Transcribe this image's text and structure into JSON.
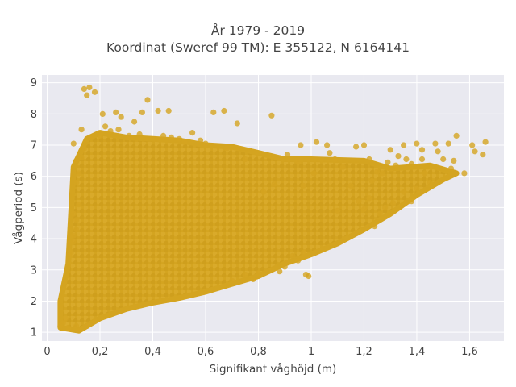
{
  "chart_data": {
    "type": "scatter",
    "title": "År 1979 - 2019",
    "subtitle": "Koordinat (Sweref 99 TM): E 355122, N 6164141",
    "xlabel": "Signifikant våghöjd (m)",
    "ylabel": "Vågperiod (s)",
    "xlim": [
      -0.02,
      1.73
    ],
    "ylim": [
      0.72,
      9.25
    ],
    "xticks": [
      "0",
      "0,2",
      "0,4",
      "0,6",
      "0,8",
      "1",
      "1,2",
      "1,4",
      "1,6"
    ],
    "xtick_values": [
      0,
      0.2,
      0.4,
      0.6,
      0.8,
      1.0,
      1.2,
      1.4,
      1.6
    ],
    "yticks": [
      "1",
      "2",
      "3",
      "4",
      "5",
      "6",
      "7",
      "8",
      "9"
    ],
    "ytick_values": [
      1,
      2,
      3,
      4,
      5,
      6,
      7,
      8,
      9
    ],
    "grid": true,
    "marker_color": "#D4A420",
    "plot_background": "#E9E9F0",
    "series": [
      {
        "dense_region_polygon": [
          [
            0.05,
            1.15
          ],
          [
            0.12,
            1.05
          ],
          [
            0.2,
            1.45
          ],
          [
            0.3,
            1.75
          ],
          [
            0.4,
            1.95
          ],
          [
            0.5,
            2.1
          ],
          [
            0.6,
            2.3
          ],
          [
            0.7,
            2.55
          ],
          [
            0.8,
            2.8
          ],
          [
            0.9,
            3.2
          ],
          [
            1.0,
            3.5
          ],
          [
            1.1,
            3.85
          ],
          [
            1.2,
            4.3
          ],
          [
            1.3,
            4.8
          ],
          [
            1.4,
            5.4
          ],
          [
            1.5,
            5.9
          ],
          [
            1.55,
            6.1
          ],
          [
            1.45,
            6.35
          ],
          [
            1.3,
            6.25
          ],
          [
            1.2,
            6.5
          ],
          [
            1.0,
            6.55
          ],
          [
            0.9,
            6.55
          ],
          [
            0.8,
            6.75
          ],
          [
            0.7,
            6.95
          ],
          [
            0.6,
            7.0
          ],
          [
            0.5,
            7.15
          ],
          [
            0.4,
            7.2
          ],
          [
            0.3,
            7.25
          ],
          [
            0.2,
            7.4
          ],
          [
            0.15,
            7.2
          ],
          [
            0.1,
            6.3
          ],
          [
            0.08,
            3.2
          ],
          [
            0.05,
            2.0
          ]
        ],
        "points": [
          [
            0.14,
            8.8
          ],
          [
            0.16,
            8.85
          ],
          [
            0.15,
            8.6
          ],
          [
            0.18,
            8.7
          ],
          [
            0.38,
            8.45
          ],
          [
            0.36,
            8.05
          ],
          [
            0.42,
            8.1
          ],
          [
            0.46,
            8.1
          ],
          [
            0.26,
            8.05
          ],
          [
            0.28,
            7.9
          ],
          [
            0.63,
            8.05
          ],
          [
            0.67,
            8.1
          ],
          [
            0.21,
            8.0
          ],
          [
            0.33,
            7.75
          ],
          [
            0.85,
            7.95
          ],
          [
            0.72,
            7.7
          ],
          [
            0.1,
            7.05
          ],
          [
            0.13,
            7.5
          ],
          [
            0.22,
            7.6
          ],
          [
            0.55,
            7.4
          ],
          [
            1.35,
            7.0
          ],
          [
            1.4,
            7.05
          ],
          [
            1.42,
            6.85
          ],
          [
            1.47,
            7.05
          ],
          [
            1.52,
            7.05
          ],
          [
            1.55,
            7.3
          ],
          [
            1.48,
            6.8
          ],
          [
            1.5,
            6.55
          ],
          [
            1.54,
            6.5
          ],
          [
            1.53,
            6.25
          ],
          [
            1.58,
            6.1
          ],
          [
            1.42,
            6.55
          ],
          [
            1.38,
            6.4
          ],
          [
            1.32,
            6.35
          ],
          [
            1.29,
            6.45
          ],
          [
            1.27,
            6.1
          ],
          [
            1.25,
            6.15
          ],
          [
            1.23,
            5.85
          ],
          [
            1.22,
            6.55
          ],
          [
            1.17,
            6.95
          ],
          [
            1.2,
            7.0
          ],
          [
            1.3,
            6.85
          ],
          [
            1.33,
            6.65
          ],
          [
            1.36,
            6.55
          ],
          [
            1.62,
            6.8
          ],
          [
            1.65,
            6.7
          ],
          [
            1.66,
            7.1
          ],
          [
            1.61,
            7.0
          ],
          [
            1.07,
            6.75
          ],
          [
            1.12,
            6.3
          ],
          [
            1.15,
            5.7
          ],
          [
            1.18,
            5.2
          ],
          [
            1.22,
            5.3
          ],
          [
            1.24,
            4.4
          ],
          [
            1.2,
            4.95
          ],
          [
            1.1,
            4.9
          ],
          [
            0.97,
            5.7
          ],
          [
            1.01,
            6.1
          ],
          [
            0.95,
            6.45
          ],
          [
            0.91,
            6.7
          ],
          [
            0.96,
            7.0
          ],
          [
            1.02,
            7.1
          ],
          [
            1.06,
            7.0
          ],
          [
            1.09,
            6.55
          ],
          [
            0.11,
            4.3
          ],
          [
            0.1,
            4.1
          ],
          [
            0.09,
            3.55
          ],
          [
            0.1,
            3.9
          ],
          [
            0.11,
            4.6
          ],
          [
            0.1,
            4.8
          ],
          [
            0.12,
            5.1
          ],
          [
            0.11,
            5.8
          ],
          [
            0.12,
            6.1
          ],
          [
            0.11,
            6.5
          ],
          [
            0.13,
            6.6
          ],
          [
            0.14,
            6.9
          ],
          [
            0.9,
            3.1
          ],
          [
            0.95,
            3.3
          ],
          [
            0.97,
            3.55
          ],
          [
            0.99,
            2.8
          ],
          [
            0.98,
            2.85
          ],
          [
            0.93,
            3.45
          ],
          [
            0.88,
            2.95
          ],
          [
            0.85,
            3.0
          ],
          [
            0.78,
            2.7
          ],
          [
            0.8,
            2.9
          ],
          [
            0.75,
            2.85
          ],
          [
            0.7,
            2.65
          ],
          [
            0.06,
            1.3
          ],
          [
            0.07,
            1.45
          ],
          [
            0.05,
            1.2
          ],
          [
            0.08,
            1.15
          ],
          [
            0.12,
            1.08
          ],
          [
            0.11,
            1.2
          ],
          [
            0.15,
            1.2
          ],
          [
            0.18,
            1.35
          ],
          [
            1.38,
            5.2
          ],
          [
            1.4,
            5.6
          ],
          [
            1.35,
            5.5
          ],
          [
            1.31,
            5.15
          ],
          [
            1.26,
            4.8
          ],
          [
            1.28,
            5.0
          ],
          [
            1.45,
            5.8
          ],
          [
            1.43,
            6.1
          ],
          [
            0.82,
            5.5
          ],
          [
            0.86,
            5.75
          ],
          [
            0.75,
            6.55
          ],
          [
            0.68,
            6.9
          ],
          [
            0.6,
            7.05
          ],
          [
            0.58,
            7.15
          ],
          [
            0.52,
            7.1
          ],
          [
            0.5,
            7.2
          ],
          [
            0.47,
            7.25
          ],
          [
            0.44,
            7.3
          ],
          [
            0.35,
            7.35
          ],
          [
            0.31,
            7.3
          ],
          [
            0.24,
            7.45
          ],
          [
            0.27,
            7.5
          ],
          [
            0.2,
            7.3
          ],
          [
            0.17,
            7.25
          ]
        ]
      }
    ]
  }
}
